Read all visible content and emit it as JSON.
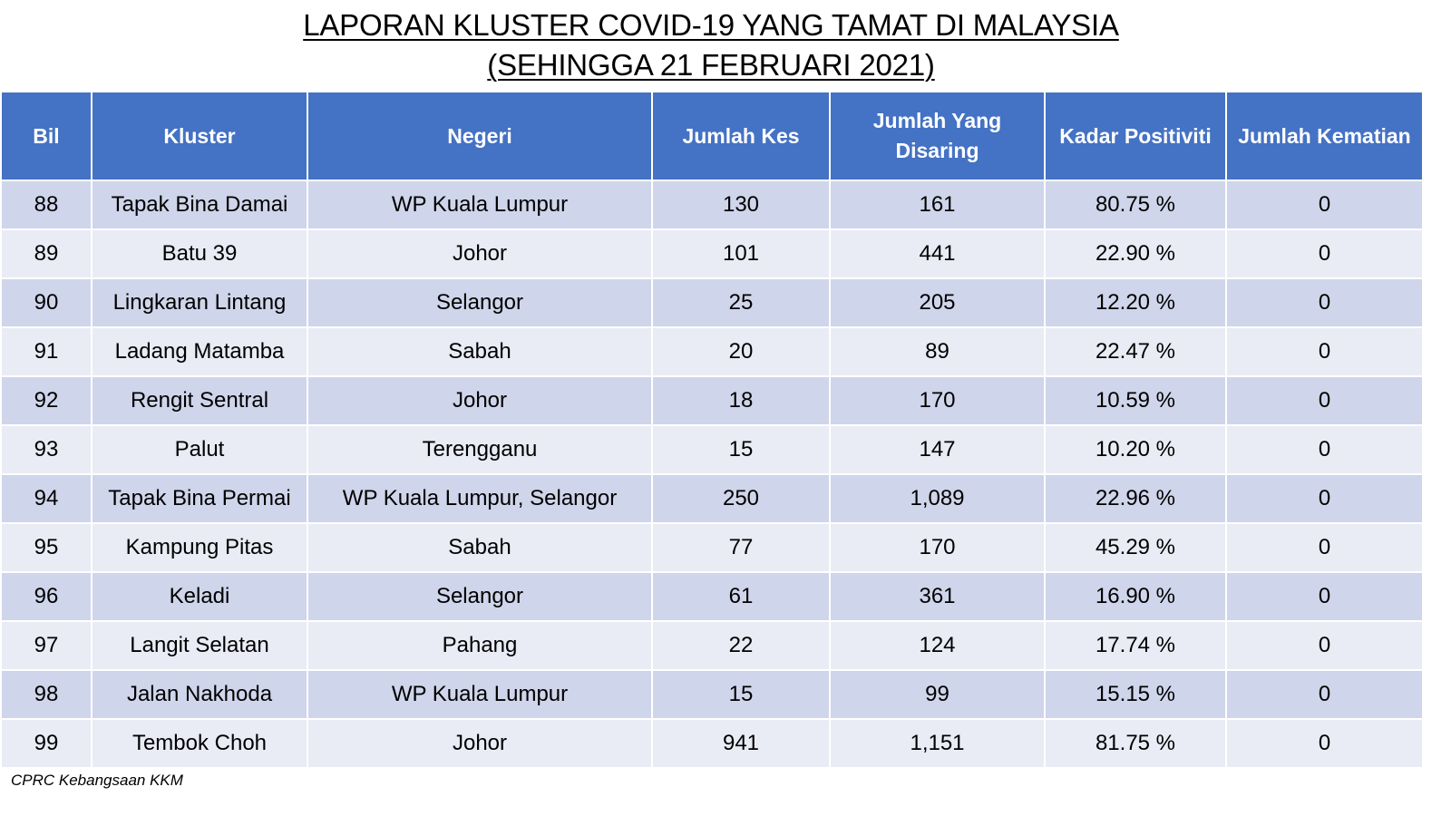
{
  "title": {
    "line1": "LAPORAN KLUSTER COVID-19 YANG TAMAT DI MALAYSIA",
    "line2": "(SEHINGGA  21 FEBRUARI 2021)"
  },
  "columns": [
    "Bil",
    "Kluster",
    "Negeri",
    "Jumlah Kes",
    "Jumlah Yang Disaring",
    "Kadar Positiviti",
    "Jumlah Kematian"
  ],
  "rows": [
    [
      "88",
      "Tapak Bina Damai",
      "WP Kuala Lumpur",
      "130",
      "161",
      "80.75 %",
      "0"
    ],
    [
      "89",
      "Batu 39",
      "Johor",
      "101",
      "441",
      "22.90 %",
      "0"
    ],
    [
      "90",
      "Lingkaran Lintang",
      "Selangor",
      "25",
      "205",
      "12.20 %",
      "0"
    ],
    [
      "91",
      "Ladang Matamba",
      "Sabah",
      "20",
      "89",
      "22.47 %",
      "0"
    ],
    [
      "92",
      "Rengit Sentral",
      "Johor",
      "18",
      "170",
      "10.59 %",
      "0"
    ],
    [
      "93",
      "Palut",
      "Terengganu",
      "15",
      "147",
      "10.20 %",
      "0"
    ],
    [
      "94",
      "Tapak Bina Permai",
      "WP Kuala Lumpur, Selangor",
      "250",
      "1,089",
      "22.96 %",
      "0"
    ],
    [
      "95",
      "Kampung Pitas",
      "Sabah",
      "77",
      "170",
      "45.29 %",
      "0"
    ],
    [
      "96",
      "Keladi",
      "Selangor",
      "61",
      "361",
      "16.90 %",
      "0"
    ],
    [
      "97",
      "Langit Selatan",
      "Pahang",
      "22",
      "124",
      "17.74 %",
      "0"
    ],
    [
      "98",
      "Jalan Nakhoda",
      "WP Kuala Lumpur",
      "15",
      "99",
      "15.15 %",
      "0"
    ],
    [
      "99",
      "Tembok Choh",
      "Johor",
      "941",
      "1,151",
      "81.75 %",
      "0"
    ]
  ],
  "footer": "CPRC Kebangsaan KKM",
  "colors": {
    "header_bg": "#4472c4",
    "row_dark": "#cfd5ea",
    "row_light": "#e9ebf5"
  }
}
